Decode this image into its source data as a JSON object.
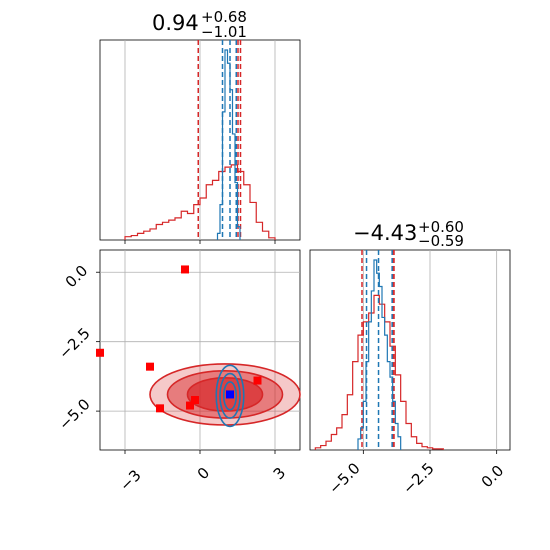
{
  "chart_data": [
    {
      "type": "histogram",
      "panel": "marginal-x",
      "title_value": "0.94",
      "title_plus": "+0.68",
      "title_minus": "−1.01",
      "xlim": [
        -4,
        4
      ],
      "grid": true,
      "series": [
        {
          "color": "#d62728",
          "style": "step",
          "bin_edges": [
            -3.0,
            -2.75,
            -2.5,
            -2.25,
            -2.0,
            -1.75,
            -1.5,
            -1.25,
            -1.0,
            -0.75,
            -0.5,
            -0.25,
            0.0,
            0.25,
            0.5,
            0.75,
            1.0,
            1.25,
            1.5,
            1.75,
            2.0,
            2.25,
            2.5,
            2.75,
            3.0
          ],
          "counts": [
            0.015,
            0.02,
            0.03,
            0.04,
            0.05,
            0.07,
            0.08,
            0.09,
            0.1,
            0.13,
            0.12,
            0.16,
            0.19,
            0.25,
            0.27,
            0.31,
            0.33,
            0.34,
            0.31,
            0.25,
            0.17,
            0.08,
            0.04,
            0.01
          ],
          "quantiles": [
            -0.07,
            1.62
          ],
          "median": 1.52
        },
        {
          "color": "#1f77b4",
          "style": "step",
          "bin_edges": [
            0.7,
            0.8,
            0.9,
            1.0,
            1.1,
            1.2,
            1.3,
            1.4,
            1.5,
            1.6
          ],
          "counts": [
            0.03,
            0.16,
            0.58,
            0.86,
            0.8,
            0.68,
            0.48,
            0.26,
            0.06
          ],
          "quantiles": [
            0.9,
            1.45
          ],
          "median": 1.2
        }
      ]
    },
    {
      "type": "histogram",
      "panel": "marginal-y",
      "title_value": "−4.43",
      "title_plus": "+0.60",
      "title_minus": "−0.59",
      "xlim": [
        -7,
        0.5
      ],
      "x_ticks": [
        "−5.0",
        "−2.5",
        "0.0"
      ],
      "grid": true,
      "series": [
        {
          "color": "#d62728",
          "style": "step",
          "bin_edges": [
            -6.8,
            -6.6,
            -6.4,
            -6.2,
            -6.0,
            -5.8,
            -5.6,
            -5.4,
            -5.2,
            -5.0,
            -4.8,
            -4.6,
            -4.4,
            -4.2,
            -4.0,
            -3.8,
            -3.6,
            -3.4,
            -3.2,
            -3.0,
            -2.8,
            -2.6,
            -2.4,
            -2.2,
            -2.0
          ],
          "counts": [
            0.01,
            0.02,
            0.04,
            0.07,
            0.1,
            0.16,
            0.25,
            0.4,
            0.52,
            0.58,
            0.62,
            0.7,
            0.66,
            0.58,
            0.47,
            0.34,
            0.22,
            0.12,
            0.06,
            0.03,
            0.015,
            0.01,
            0.005,
            0.005
          ],
          "quantiles": [
            -5.05,
            -3.85
          ],
          "median": -3.9
        },
        {
          "color": "#1f77b4",
          "style": "step",
          "bin_edges": [
            -5.2,
            -5.1,
            -5.0,
            -4.9,
            -4.8,
            -4.7,
            -4.6,
            -4.5,
            -4.4,
            -4.3,
            -4.2,
            -4.1,
            -4.0,
            -3.9,
            -3.8,
            -3.7,
            -3.6
          ],
          "counts": [
            0.05,
            0.1,
            0.22,
            0.4,
            0.58,
            0.72,
            0.86,
            0.8,
            0.74,
            0.6,
            0.52,
            0.4,
            0.33,
            0.22,
            0.12,
            0.06
          ],
          "quantiles": [
            -4.88,
            -3.92
          ],
          "median": -4.43
        }
      ]
    },
    {
      "type": "scatter",
      "panel": "joint",
      "xlim": [
        -4,
        4
      ],
      "ylim": [
        -6.4,
        0.8
      ],
      "x_ticks": [
        "−3",
        "0",
        "3"
      ],
      "y_ticks": [
        "−5.0",
        "−2.5",
        "0.0"
      ],
      "grid": true,
      "contour_series": [
        {
          "name": "",
          "color": "#d62728",
          "center": [
            1.0,
            -4.4
          ],
          "levels_radii": [
            [
              3.0,
              1.1
            ],
            [
              2.3,
              0.85
            ],
            [
              1.5,
              0.6
            ]
          ]
        },
        {
          "name": "",
          "color": "#1f77b4",
          "center": [
            1.2,
            -4.45
          ],
          "levels_radii": [
            [
              0.55,
              1.1
            ],
            [
              0.4,
              0.8
            ],
            [
              0.25,
              0.5
            ]
          ]
        }
      ],
      "marker_points_red": [
        {
          "x": -0.6,
          "y": 0.1
        },
        {
          "x": -4.0,
          "y": -2.9
        },
        {
          "x": -2.0,
          "y": -3.4
        },
        {
          "x": 2.3,
          "y": -3.9
        },
        {
          "x": -0.4,
          "y": -4.8
        },
        {
          "x": -1.6,
          "y": -4.9
        },
        {
          "x": -0.2,
          "y": -4.6
        }
      ],
      "marker_points_blue": [
        {
          "x": 1.2,
          "y": -4.4
        }
      ]
    }
  ]
}
